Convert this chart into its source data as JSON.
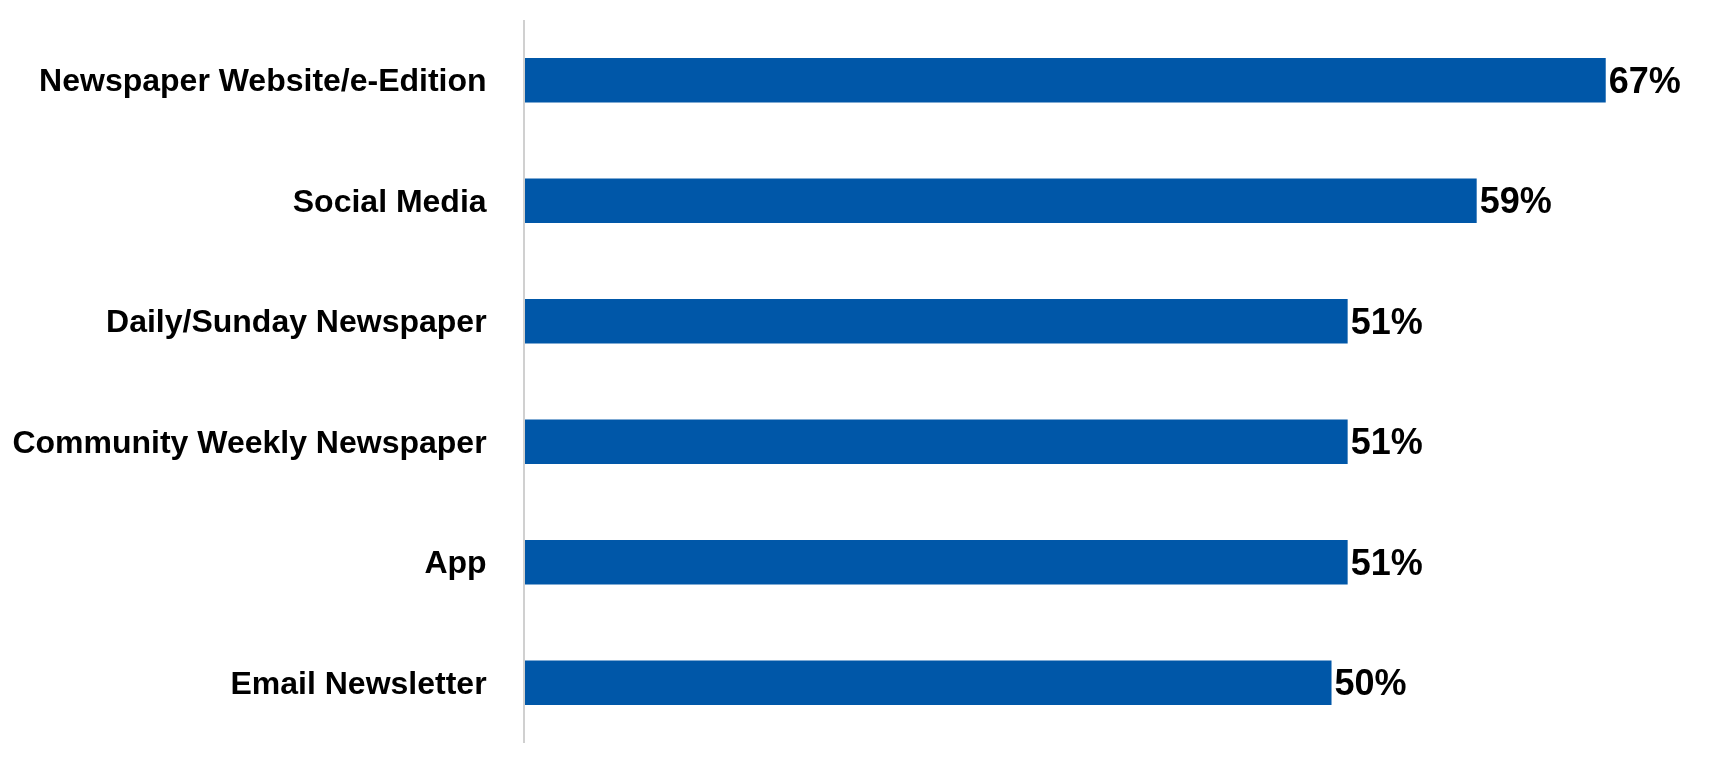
{
  "chart_data": {
    "type": "bar",
    "orientation": "horizontal",
    "categories": [
      "Newspaper Website/e-Edition",
      "Social Media",
      "Daily/Sunday Newspaper",
      "Community Weekly Newspaper",
      "App",
      "Email Newsletter"
    ],
    "values": [
      67,
      59,
      51,
      51,
      51,
      50
    ],
    "value_labels": [
      "67%",
      "59%",
      "51%",
      "51%",
      "51%",
      "50%"
    ],
    "color": "#0057a8",
    "legend": false
  }
}
